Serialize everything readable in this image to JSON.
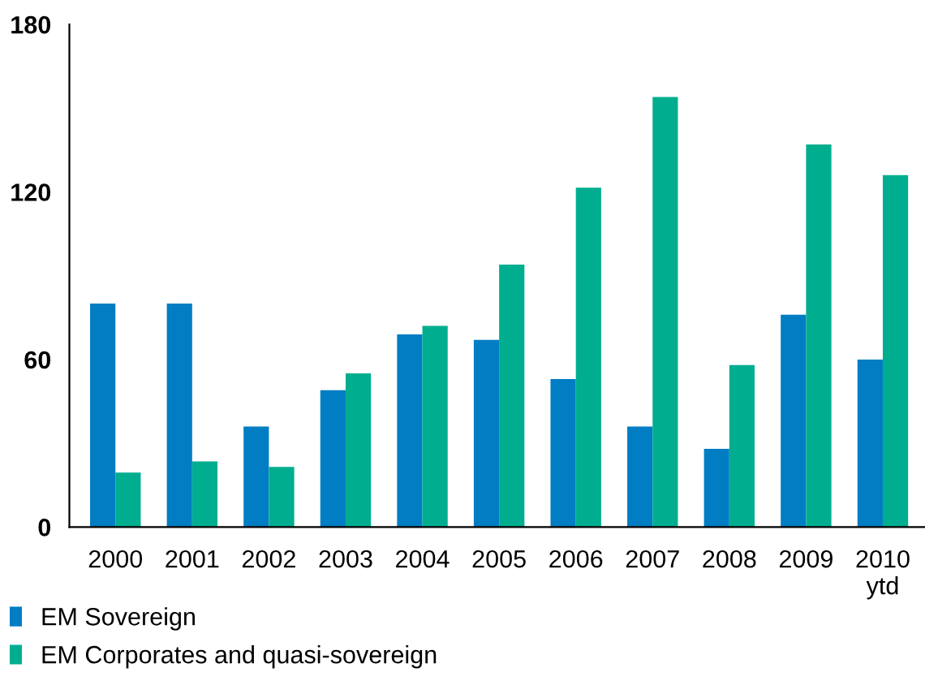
{
  "chart_data": {
    "type": "bar",
    "categories": [
      "2000",
      "2001",
      "2002",
      "2003",
      "2004",
      "2005",
      "2006",
      "2007",
      "2008",
      "2009",
      "2010\nytd"
    ],
    "series": [
      {
        "name": "EM Sovereign",
        "color": "#007dc3",
        "values": [
          80,
          80,
          36,
          49,
          69,
          67,
          53,
          36,
          28,
          76,
          60
        ]
      },
      {
        "name": "EM Corporates and quasi-sovereign",
        "color": "#00ae8f",
        "values": [
          19.5,
          23.5,
          21.5,
          55,
          72,
          94,
          121.5,
          154,
          58,
          137,
          126
        ]
      }
    ],
    "ylim": [
      0,
      180
    ],
    "yticks": [
      0,
      60,
      120,
      180
    ],
    "grid": false,
    "legend": "bottom left"
  }
}
